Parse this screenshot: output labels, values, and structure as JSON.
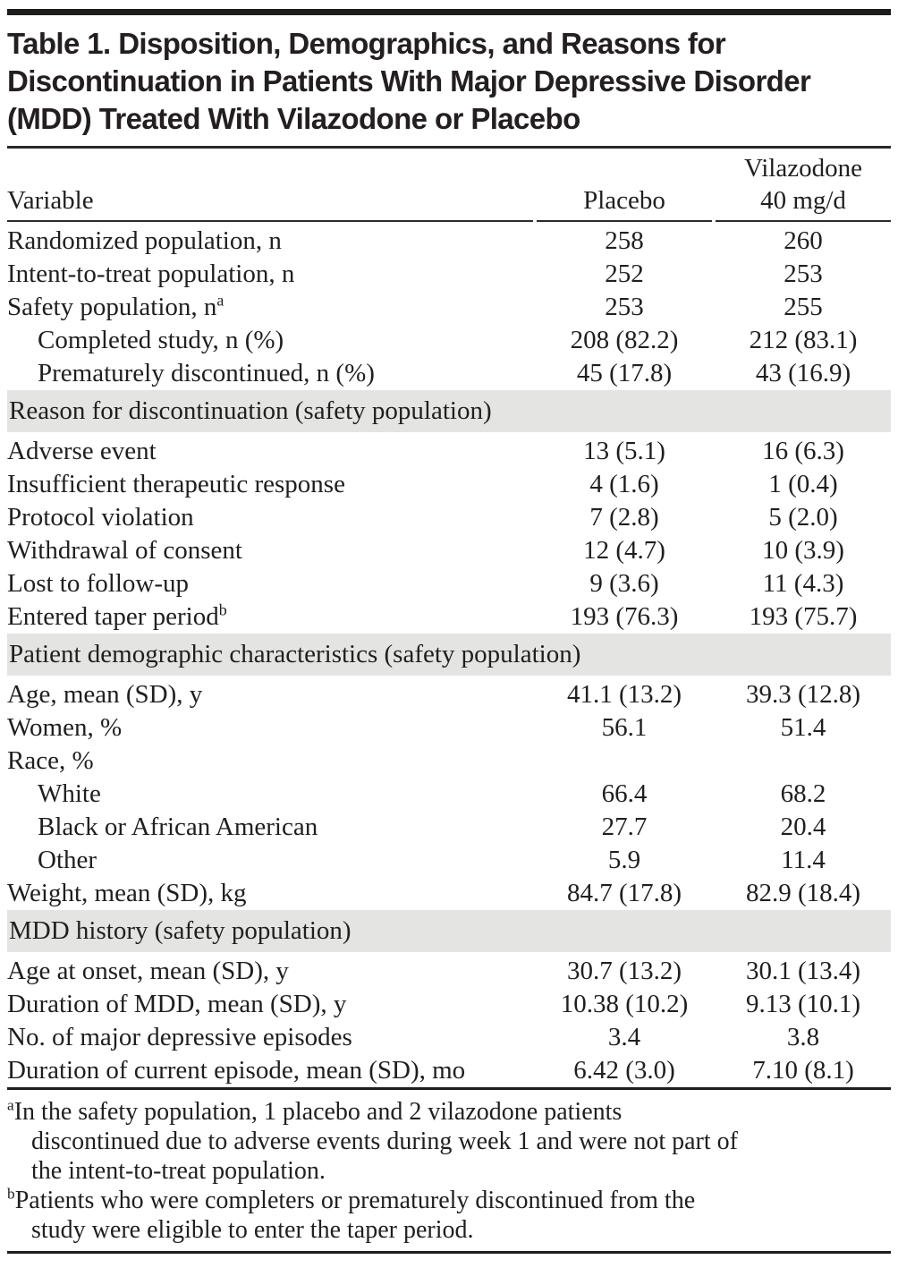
{
  "colors": {
    "section_band": "#e4e4e2",
    "rule": "#1e1e1e",
    "text": "#1f1f1f"
  },
  "table": {
    "title_lines": [
      "Table 1. Disposition, Demographics, and Reasons for",
      "Discontinuation in Patients With Major Depressive Disorder",
      "(MDD) Treated With Vilazodone or Placebo"
    ],
    "header": {
      "col1": "Variable",
      "col2": "Placebo",
      "col3_line1": "Vilazodone",
      "col3_line2": "40 mg/d"
    },
    "rows": [
      {
        "type": "data",
        "label": "Randomized population, n",
        "indent": 0,
        "placebo": "258",
        "vilazodone": "260"
      },
      {
        "type": "data",
        "label": "Intent-to-treat population, n",
        "indent": 0,
        "placebo": "252",
        "vilazodone": "253"
      },
      {
        "type": "data",
        "label": "Safety population, n",
        "sup": "a",
        "indent": 0,
        "placebo": "253",
        "vilazodone": "255"
      },
      {
        "type": "data",
        "label": "Completed study, n (%)",
        "indent": 1,
        "placebo": "208 (82.2)",
        "vilazodone": "212 (83.1)"
      },
      {
        "type": "data",
        "label": "Prematurely discontinued, n (%)",
        "indent": 1,
        "placebo": "45 (17.8)",
        "vilazodone": "43 (16.9)"
      },
      {
        "type": "section",
        "label": "Reason for discontinuation (safety population)"
      },
      {
        "type": "data",
        "label": "Adverse event",
        "indent": 0,
        "placebo": "13 (5.1)",
        "vilazodone": "16 (6.3)"
      },
      {
        "type": "data",
        "label": "Insufficient therapeutic response",
        "indent": 0,
        "placebo": "4 (1.6)",
        "vilazodone": "1 (0.4)"
      },
      {
        "type": "data",
        "label": "Protocol violation",
        "indent": 0,
        "placebo": "7 (2.8)",
        "vilazodone": "5 (2.0)"
      },
      {
        "type": "data",
        "label": "Withdrawal of consent",
        "indent": 0,
        "placebo": "12 (4.7)",
        "vilazodone": "10 (3.9)"
      },
      {
        "type": "data",
        "label": "Lost to follow-up",
        "indent": 0,
        "placebo": "9 (3.6)",
        "vilazodone": "11 (4.3)"
      },
      {
        "type": "data",
        "label": "Entered taper period",
        "sup": "b",
        "indent": 0,
        "placebo": "193 (76.3)",
        "vilazodone": "193 (75.7)"
      },
      {
        "type": "section",
        "label": "Patient demographic characteristics (safety population)"
      },
      {
        "type": "data",
        "label": "Age, mean (SD), y",
        "indent": 0,
        "placebo": "41.1 (13.2)",
        "vilazodone": "39.3 (12.8)"
      },
      {
        "type": "data",
        "label": "Women, %",
        "indent": 0,
        "placebo": "56.1",
        "vilazodone": "51.4"
      },
      {
        "type": "data",
        "label": "Race, %",
        "indent": 0,
        "placebo": "",
        "vilazodone": ""
      },
      {
        "type": "data",
        "label": "White",
        "indent": 1,
        "placebo": "66.4",
        "vilazodone": "68.2"
      },
      {
        "type": "data",
        "label": "Black or African American",
        "indent": 1,
        "placebo": "27.7",
        "vilazodone": "20.4"
      },
      {
        "type": "data",
        "label": "Other",
        "indent": 1,
        "placebo": "5.9",
        "vilazodone": "11.4"
      },
      {
        "type": "data",
        "label": "Weight, mean (SD), kg",
        "indent": 0,
        "placebo": "84.7 (17.8)",
        "vilazodone": "82.9 (18.4)"
      },
      {
        "type": "section",
        "label": "MDD history (safety population)"
      },
      {
        "type": "data",
        "label": "Age at onset, mean (SD), y",
        "indent": 0,
        "placebo": "30.7 (13.2)",
        "vilazodone": "30.1 (13.4)"
      },
      {
        "type": "data",
        "label": "Duration of MDD, mean (SD), y",
        "indent": 0,
        "placebo": "10.38 (10.2)",
        "vilazodone": "9.13 (10.1)"
      },
      {
        "type": "data",
        "label": "No. of major depressive episodes",
        "indent": 0,
        "placebo": "3.4",
        "vilazodone": "3.8"
      },
      {
        "type": "data",
        "label": "Duration of current episode, mean (SD), mo",
        "indent": 0,
        "placebo": "6.42 (3.0)",
        "vilazodone": "7.10 (8.1)"
      }
    ],
    "footnotes": [
      {
        "marker": "a",
        "lines": [
          "In the safety population, 1 placebo and 2 vilazodone patients",
          "discontinued due to adverse events during week 1 and were not part of",
          "the intent-to-treat population."
        ]
      },
      {
        "marker": "b",
        "lines": [
          "Patients who were completers or prematurely discontinued from the",
          "study were eligible to enter the taper period."
        ]
      }
    ]
  }
}
